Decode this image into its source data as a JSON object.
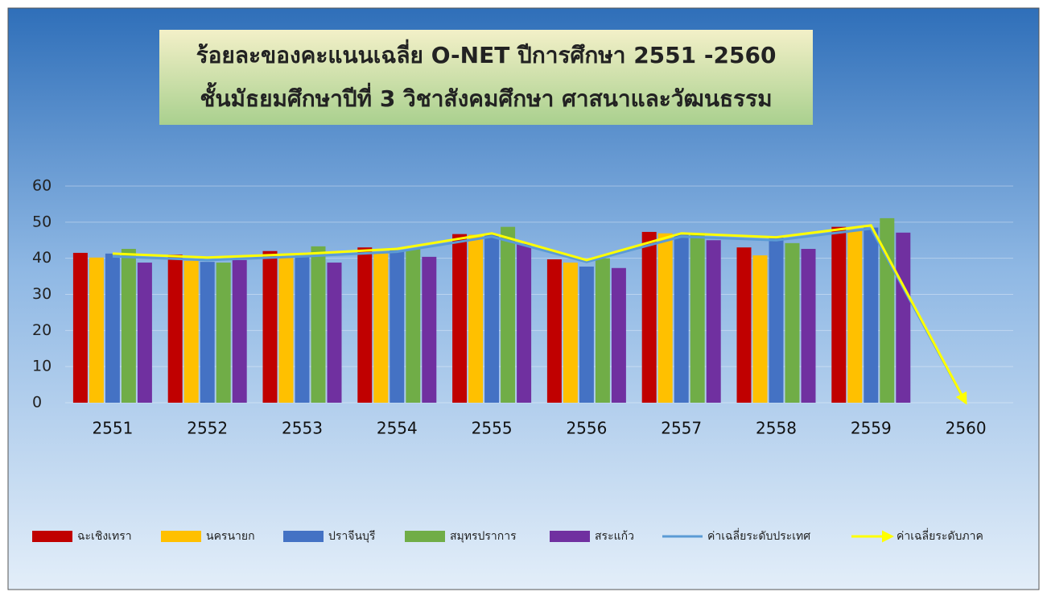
{
  "chart_data": {
    "type": "bar",
    "title": "ร้อยละของคะแนนเฉลี่ย O-NET ปีการศึกษา 2551 -2560",
    "subtitle": "ชั้นมัธยมศึกษาปีที่ 3 วิชาสังคมศึกษา ศาสนาและวัฒนธรรม",
    "categories": [
      "2551",
      "2552",
      "2553",
      "2554",
      "2555",
      "2556",
      "2557",
      "2558",
      "2559",
      "2560"
    ],
    "series": [
      {
        "name": "ฉะเชิงเทรา",
        "color": "#c00000",
        "values": [
          41.5,
          41,
          42,
          43,
          46.7,
          39.7,
          47.3,
          43,
          48.7,
          null
        ]
      },
      {
        "name": "นครนายก",
        "color": "#ffc000",
        "values": [
          40.2,
          39.3,
          40.6,
          41.5,
          46.5,
          38.8,
          46.9,
          40.8,
          48,
          null
        ]
      },
      {
        "name": "ปราจีนบุรี",
        "color": "#4472c4",
        "values": [
          41.3,
          39,
          41,
          42.2,
          46.5,
          37.7,
          46.5,
          45.8,
          48.5,
          null
        ]
      },
      {
        "name": "สมุทรปราการ",
        "color": "#70ad47",
        "values": [
          42.6,
          38.8,
          43.3,
          42.5,
          48.7,
          40,
          47,
          44.2,
          51.1,
          null
        ]
      },
      {
        "name": "สระแก้ว",
        "color": "#7030a0",
        "values": [
          38.8,
          39.5,
          38.8,
          40.4,
          44,
          37.3,
          45,
          42.6,
          47.1,
          null
        ]
      },
      {
        "name": "ค่าเฉลี่ยระดับประเทศ",
        "type": "line",
        "color": "#5b9bd5",
        "values": [
          40.5,
          39.5,
          40.5,
          41.8,
          46,
          39,
          46,
          45,
          48.2,
          0
        ]
      },
      {
        "name": "ค่าเฉลี่ยระดับภาค",
        "type": "line",
        "color": "#ffff00",
        "values": [
          41.3,
          40.2,
          41.2,
          42.6,
          46.9,
          39.5,
          46.9,
          45.8,
          49.1,
          0
        ]
      }
    ],
    "ylim": [
      0,
      60
    ],
    "yticks": [
      0,
      10,
      20,
      30,
      40,
      50,
      60
    ],
    "grid": true
  }
}
